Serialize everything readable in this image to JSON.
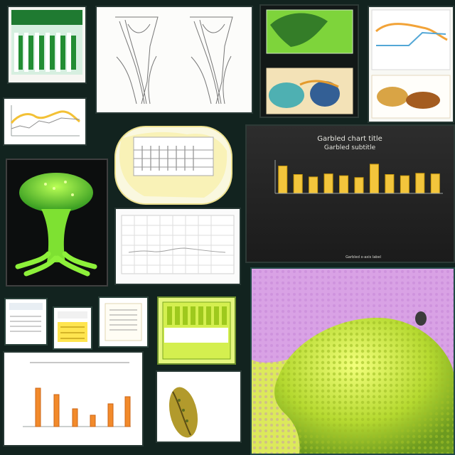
{
  "page": {
    "background": "#12231f",
    "accent_green": "#78d12a",
    "accent_yellow": "#f3d12f",
    "accent_purple": "#b35fc7"
  },
  "collage": {
    "large_chart": {
      "title_line_1": "Garbled chart title",
      "title_line_2": "Garbled subtitle",
      "xlabel": "Garbled x-axis label"
    }
  },
  "chart_data": {
    "type": "bar",
    "categories": [
      "",
      "",
      "",
      "",
      "",
      "",
      "",
      "",
      "",
      "",
      ""
    ],
    "values": [
      45,
      31,
      27,
      32,
      29,
      26,
      48,
      31,
      29,
      33,
      32
    ],
    "title": "",
    "xlabel": "",
    "ylabel": "",
    "ylim": [
      0,
      55
    ]
  }
}
